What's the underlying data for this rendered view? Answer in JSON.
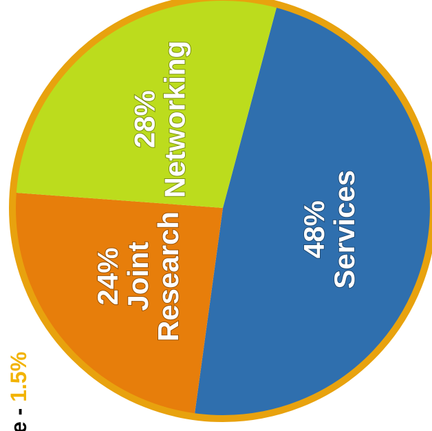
{
  "chart_data": {
    "type": "pie",
    "slices": [
      {
        "percent_label": "48%",
        "label_lines": [
          "Services"
        ],
        "value": 48,
        "color": "#2f6fae"
      },
      {
        "percent_label": "24%",
        "label_lines": [
          "Joint",
          "Research"
        ],
        "value": 24,
        "color": "#e77e0b"
      },
      {
        "percent_label": "28%",
        "label_lines": [
          "Networking"
        ],
        "value": 28,
        "color": "#bcdc1d"
      }
    ],
    "border_color": "#e8a20e",
    "side_note": {
      "text": "e - ",
      "value": "1.5%",
      "value_color": "#f2b300"
    }
  }
}
